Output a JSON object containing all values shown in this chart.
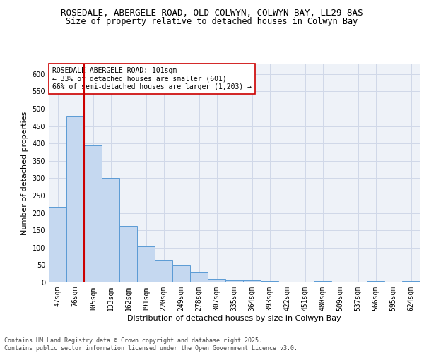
{
  "title_line1": "ROSEDALE, ABERGELE ROAD, OLD COLWYN, COLWYN BAY, LL29 8AS",
  "title_line2": "Size of property relative to detached houses in Colwyn Bay",
  "xlabel": "Distribution of detached houses by size in Colwyn Bay",
  "ylabel": "Number of detached properties",
  "categories": [
    "47sqm",
    "76sqm",
    "105sqm",
    "133sqm",
    "162sqm",
    "191sqm",
    "220sqm",
    "249sqm",
    "278sqm",
    "307sqm",
    "335sqm",
    "364sqm",
    "393sqm",
    "422sqm",
    "451sqm",
    "480sqm",
    "509sqm",
    "537sqm",
    "566sqm",
    "595sqm",
    "624sqm"
  ],
  "values": [
    218,
    478,
    395,
    301,
    163,
    104,
    65,
    48,
    31,
    10,
    7,
    7,
    5,
    0,
    0,
    4,
    0,
    0,
    4,
    0,
    4
  ],
  "bar_color": "#c5d8f0",
  "bar_edge_color": "#5b9bd5",
  "grid_color": "#d0d8e8",
  "background_color": "#eef2f8",
  "vline_color": "#cc0000",
  "annotation_text": "ROSEDALE ABERGELE ROAD: 101sqm\n← 33% of detached houses are smaller (601)\n66% of semi-detached houses are larger (1,203) →",
  "annotation_box_color": "#ffffff",
  "annotation_box_edge_color": "#cc0000",
  "footer_text": "Contains HM Land Registry data © Crown copyright and database right 2025.\nContains public sector information licensed under the Open Government Licence v3.0.",
  "ylim": [
    0,
    630
  ],
  "yticks": [
    0,
    50,
    100,
    150,
    200,
    250,
    300,
    350,
    400,
    450,
    500,
    550,
    600
  ],
  "title_fontsize": 9,
  "subtitle_fontsize": 8.5,
  "axis_label_fontsize": 8,
  "tick_fontsize": 7,
  "annotation_fontsize": 7,
  "footer_fontsize": 6
}
